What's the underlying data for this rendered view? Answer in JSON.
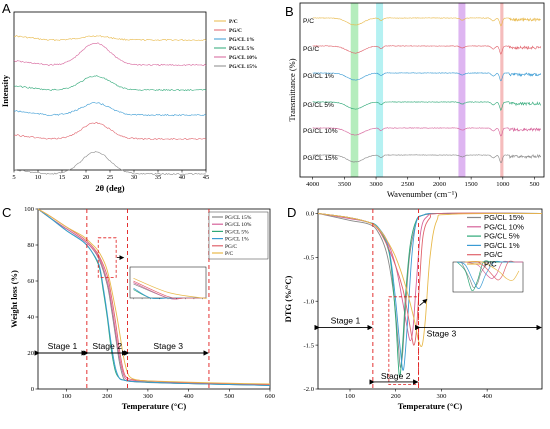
{
  "colors": {
    "PC": "#e8b94a",
    "PGC": "#e0626b",
    "PGCL1": "#3a9bd4",
    "PGCL5": "#2ea877",
    "PGCL10": "#d6629a",
    "PGCL15": "#888888",
    "dashed": "#e01b1b"
  },
  "chart_data": [
    {
      "panel": "A",
      "type": "line",
      "title": "",
      "xlabel": "2θ (deg)",
      "ylabel": "Intensity",
      "xlim": [
        5,
        45
      ],
      "xticks": [
        "5",
        "10",
        "15",
        "20",
        "25",
        "30",
        "35",
        "40",
        "45"
      ],
      "legend": [
        "P/C",
        "PG/C",
        "PG/CL 1%",
        "PG/CL 5%",
        "PG/CL 10%",
        "PG/CL 15%"
      ],
      "legend_position": "top-right",
      "peak_x": 22,
      "series_order_top_to_bottom": [
        "P/C",
        "PG/CL 10%",
        "PG/CL 5%",
        "PG/CL 1%",
        "PG/C",
        "PG/CL 15%"
      ]
    },
    {
      "panel": "B",
      "type": "line",
      "title": "",
      "xlabel": "Wavenumber (cm⁻¹)",
      "ylabel": "Transmittance (%)",
      "xlim": [
        4000,
        400
      ],
      "xticks": [
        "4000",
        "3500",
        "3000",
        "2500",
        "2000",
        "1500",
        "1000",
        "500"
      ],
      "series_labels": [
        "P/C",
        "PG/C",
        "PG/CL 1%",
        "PG/CL 5%",
        "PG/CL 10%",
        "PG/CL 15%"
      ],
      "highlight_bands": [
        [
          3400,
          3280
        ],
        [
          3000,
          2890
        ],
        [
          1700,
          1590
        ],
        [
          1040,
          990
        ]
      ]
    },
    {
      "panel": "C",
      "type": "line",
      "title": "",
      "xlabel": "Temperature (°C)",
      "ylabel": "Weight loss (%)",
      "xlim": [
        30,
        600
      ],
      "ylim": [
        0,
        100
      ],
      "xticks": [
        "100",
        "200",
        "300",
        "400",
        "500",
        "600"
      ],
      "yticks": [
        "0",
        "20",
        "40",
        "60",
        "80",
        "100"
      ],
      "legend": [
        "PG/CL 15%",
        "PG/CL 10%",
        "PG/CL 5%",
        "PG/CL 1%",
        "PG/C",
        "P/C"
      ],
      "legend_position": "top-right",
      "stages": [
        "Stage 1",
        "Stage 2",
        "Stage 3"
      ],
      "stage_bounds": [
        150,
        250,
        450
      ],
      "stage_arrow_y": 20,
      "series": [
        {
          "name": "PG/CL 15%",
          "x": [
            30,
            60,
            100,
            140,
            160,
            180,
            200,
            210,
            220,
            230,
            240,
            250,
            270,
            300,
            400,
            500,
            600
          ],
          "y": [
            100,
            95,
            89,
            83,
            79,
            72,
            58,
            45,
            30,
            15,
            6,
            4.5,
            4,
            3.6,
            3,
            2.5,
            2
          ]
        },
        {
          "name": "PG/CL 10%",
          "x": [
            30,
            60,
            100,
            140,
            160,
            180,
            200,
            210,
            220,
            230,
            240,
            250,
            270,
            300,
            400,
            500,
            600
          ],
          "y": [
            100,
            95,
            89,
            83,
            79,
            73,
            60,
            48,
            33,
            18,
            8,
            5,
            4.5,
            4,
            3.2,
            2.7,
            2.2
          ]
        },
        {
          "name": "PG/CL 5%",
          "x": [
            30,
            60,
            100,
            140,
            160,
            180,
            190,
            200,
            210,
            220,
            230,
            240,
            260,
            300,
            400,
            500,
            600
          ],
          "y": [
            100,
            95,
            88,
            82,
            77,
            68,
            55,
            40,
            22,
            10,
            6,
            5,
            4.2,
            3.8,
            3,
            2.5,
            2
          ]
        },
        {
          "name": "PG/CL 1%",
          "x": [
            30,
            60,
            100,
            140,
            160,
            180,
            190,
            200,
            210,
            220,
            230,
            240,
            260,
            300,
            400,
            500,
            600
          ],
          "y": [
            100,
            95,
            88,
            82,
            77,
            69,
            57,
            42,
            25,
            12,
            6,
            5,
            4.2,
            3.8,
            3,
            2.5,
            2
          ]
        },
        {
          "name": "PG/C",
          "x": [
            30,
            60,
            100,
            140,
            160,
            180,
            200,
            210,
            220,
            230,
            240,
            250,
            270,
            300,
            400,
            500,
            600
          ],
          "y": [
            100,
            96,
            90,
            84,
            80,
            74,
            63,
            52,
            38,
            22,
            10,
            6,
            5,
            4.5,
            3.5,
            3,
            2.5
          ]
        },
        {
          "name": "P/C",
          "x": [
            30,
            60,
            100,
            140,
            160,
            180,
            200,
            220,
            230,
            240,
            250,
            260,
            280,
            300,
            400,
            500,
            600
          ],
          "y": [
            100,
            96,
            90,
            85,
            81,
            76,
            66,
            45,
            32,
            18,
            9,
            6,
            4.8,
            4.5,
            3.8,
            3.2,
            2.8
          ]
        }
      ]
    },
    {
      "panel": "D",
      "type": "line",
      "title": "",
      "xlabel": "Temperature (°C)",
      "ylabel": "DTG (%/°C)",
      "xlim": [
        30,
        520
      ],
      "ylim": [
        -2.0,
        0.05
      ],
      "xticks": [
        "100",
        "200",
        "300",
        "400"
      ],
      "yticks": [
        "-2.0",
        "-1.5",
        "-1.0",
        "-0.5",
        "0.0"
      ],
      "legend": [
        "PG/CL 15%",
        "PG/CL 10%",
        "PG/CL 5%",
        "PG/CL 1%",
        "PG/C",
        "P/C"
      ],
      "legend_position": "top-right",
      "stages": [
        "Stage 1",
        "Stage 2",
        "Stage 3"
      ],
      "stage_bounds": [
        150,
        250
      ],
      "stage_arrow_y": -1.3,
      "series": [
        {
          "name": "PG/CL 15%",
          "x": [
            30,
            100,
            140,
            160,
            180,
            195,
            205,
            210,
            215,
            220,
            230,
            245,
            255,
            270,
            300,
            520
          ],
          "y": [
            0,
            -0.08,
            -0.12,
            -0.2,
            -0.45,
            -0.9,
            -1.45,
            -1.75,
            -1.6,
            -1.2,
            -0.5,
            -0.1,
            -0.03,
            -0.01,
            0,
            0
          ]
        },
        {
          "name": "PG/CL 10%",
          "x": [
            30,
            100,
            140,
            160,
            180,
            200,
            215,
            225,
            232,
            238,
            245,
            255,
            270,
            300,
            520
          ],
          "y": [
            0,
            -0.06,
            -0.1,
            -0.16,
            -0.3,
            -0.6,
            -1.0,
            -1.3,
            -1.45,
            -1.3,
            -0.8,
            -0.2,
            -0.03,
            0,
            0
          ]
        },
        {
          "name": "PG/CL 5%",
          "x": [
            30,
            100,
            140,
            160,
            180,
            190,
            200,
            208,
            215,
            222,
            232,
            245,
            260,
            300,
            520
          ],
          "y": [
            0,
            -0.05,
            -0.1,
            -0.15,
            -0.35,
            -0.6,
            -1.2,
            -1.85,
            -1.5,
            -0.9,
            -0.35,
            -0.08,
            -0.02,
            0,
            0
          ]
        },
        {
          "name": "PG/CL 1%",
          "x": [
            30,
            100,
            140,
            160,
            180,
            190,
            200,
            210,
            217,
            225,
            235,
            245,
            260,
            300,
            520
          ],
          "y": [
            0,
            -0.05,
            -0.1,
            -0.15,
            -0.32,
            -0.55,
            -1.0,
            -1.55,
            -1.78,
            -1.3,
            -0.5,
            -0.1,
            -0.02,
            0,
            0
          ]
        },
        {
          "name": "PG/C",
          "x": [
            30,
            100,
            140,
            160,
            180,
            200,
            215,
            225,
            235,
            240,
            245,
            252,
            260,
            275,
            300,
            520
          ],
          "y": [
            0,
            -0.05,
            -0.1,
            -0.17,
            -0.35,
            -0.6,
            -0.85,
            -1.1,
            -1.4,
            -1.5,
            -1.35,
            -0.8,
            -0.25,
            -0.05,
            0,
            0
          ]
        },
        {
          "name": "P/C",
          "x": [
            30,
            100,
            140,
            160,
            180,
            200,
            220,
            240,
            250,
            258,
            265,
            275,
            290,
            320,
            520
          ],
          "y": [
            0,
            -0.05,
            -0.1,
            -0.16,
            -0.3,
            -0.5,
            -0.8,
            -1.2,
            -1.45,
            -1.5,
            -1.2,
            -0.5,
            -0.08,
            -0.01,
            0
          ]
        }
      ]
    }
  ]
}
